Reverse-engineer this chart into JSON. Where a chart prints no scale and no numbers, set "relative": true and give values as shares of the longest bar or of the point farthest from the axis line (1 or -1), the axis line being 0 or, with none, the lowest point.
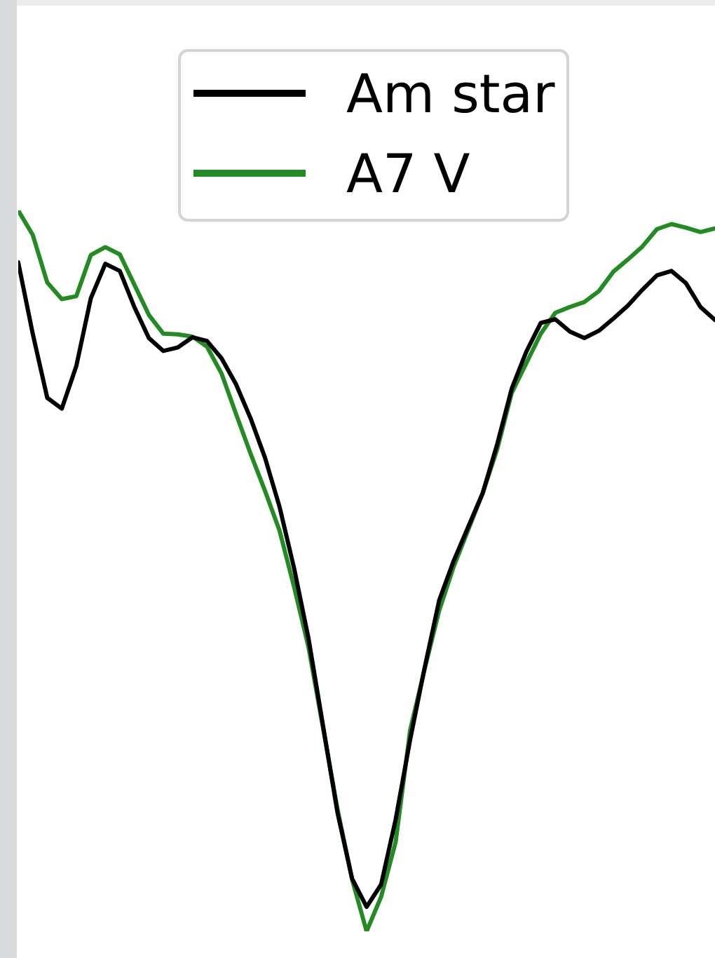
{
  "chart_data": {
    "type": "line",
    "relative": true,
    "legend": "top",
    "categories": [
      null,
      null,
      null,
      null,
      null,
      null,
      null,
      null,
      null,
      null,
      null,
      null,
      null,
      null,
      null,
      null,
      null,
      null,
      null,
      null,
      null,
      null,
      null,
      null,
      null,
      null,
      null,
      null,
      null,
      null,
      null,
      null,
      null,
      null,
      null,
      null,
      null,
      null,
      null,
      null,
      null,
      null,
      null,
      null,
      null,
      null,
      null,
      null,
      null
    ],
    "series": [
      {
        "name": "Am star",
        "color": "#000000",
        "values": [
          0.928,
          0.829,
          0.74,
          0.725,
          0.784,
          0.878,
          0.926,
          0.916,
          0.866,
          0.823,
          0.805,
          0.81,
          0.824,
          0.819,
          0.795,
          0.759,
          0.712,
          0.657,
          0.589,
          0.504,
          0.406,
          0.285,
          0.164,
          0.073,
          0.034,
          0.065,
          0.155,
          0.266,
          0.366,
          0.459,
          0.514,
          0.561,
          0.608,
          0.676,
          0.753,
          0.804,
          0.844,
          0.849,
          0.832,
          0.823,
          0.833,
          0.85,
          0.868,
          0.89,
          0.91,
          0.916,
          0.899,
          0.866,
          0.848
        ]
      },
      {
        "name": "A7 V",
        "color": "#228b22",
        "values": [
          1.0,
          0.966,
          0.9,
          0.877,
          0.881,
          0.938,
          0.949,
          0.939,
          0.897,
          0.855,
          0.829,
          0.828,
          0.825,
          0.811,
          0.774,
          0.718,
          0.663,
          0.611,
          0.556,
          0.478,
          0.394,
          0.282,
          0.169,
          0.072,
          0.0,
          0.048,
          0.124,
          0.279,
          0.364,
          0.445,
          0.506,
          0.557,
          0.608,
          0.669,
          0.747,
          0.788,
          0.829,
          0.858,
          0.866,
          0.873,
          0.888,
          0.915,
          0.932,
          0.95,
          0.974,
          0.981,
          0.976,
          0.97,
          0.975
        ]
      }
    ]
  }
}
